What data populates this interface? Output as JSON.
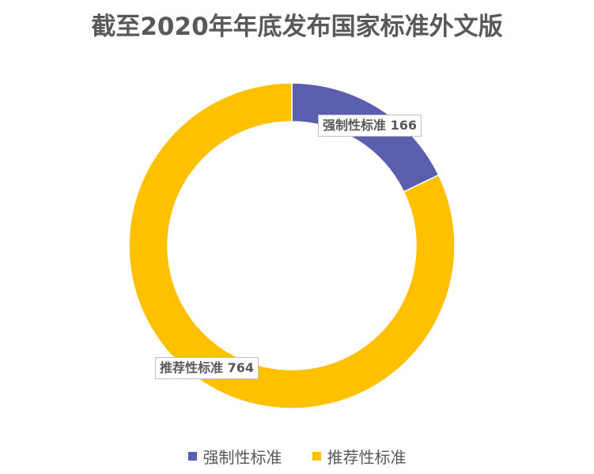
{
  "chart_data": {
    "type": "pie",
    "variant": "donut",
    "title": "截至2020年年底发布国家标准外文版",
    "categories": [
      "强制性标准",
      "推荐性标准"
    ],
    "values": [
      166,
      764
    ],
    "colors": [
      "#5B5EAD",
      "#FFC000"
    ],
    "data_labels": [
      "强制性标准 166",
      "推荐性标准 764"
    ],
    "legend": {
      "position": "bottom",
      "entries": [
        "强制性标准",
        "推荐性标准"
      ]
    }
  }
}
